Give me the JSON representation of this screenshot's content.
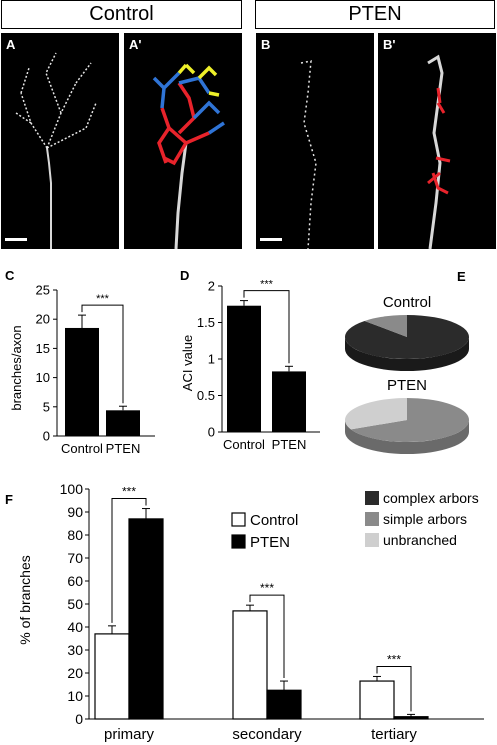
{
  "headers": {
    "left": "Control",
    "right": "PTEN"
  },
  "panels": {
    "A": "A",
    "A_prime": "A'",
    "B": "B",
    "B_prime": "B'",
    "C": "C",
    "D": "D",
    "E": "E",
    "F": "F"
  },
  "colors": {
    "primary_trace": "#e8232b",
    "secondary_trace": "#2f74d6",
    "tertiary_trace": "#eef02a",
    "axon": "#d8d8d8",
    "complex": "#2b2b2b",
    "simple": "#8a8a8a",
    "unbranched": "#cfcfcf"
  },
  "chart_data": [
    {
      "id": "C",
      "type": "bar",
      "categories": [
        "Control",
        "PTEN"
      ],
      "values": [
        18.5,
        4.4
      ],
      "errors": [
        2.2,
        0.7
      ],
      "ylabel": "branches/axon",
      "ylim": [
        0,
        25
      ],
      "yticks": [
        "0",
        "5",
        "10",
        "15",
        "20",
        "25"
      ],
      "significance": "***",
      "bar_color": "#000000"
    },
    {
      "id": "D",
      "type": "bar",
      "categories": [
        "Control",
        "PTEN"
      ],
      "values": [
        1.73,
        0.83
      ],
      "errors": [
        0.07,
        0.07
      ],
      "ylabel": "ACI value",
      "ylim": [
        0,
        2
      ],
      "yticks": [
        "0",
        "0.5",
        "1",
        "1.5",
        "2"
      ],
      "significance": "***",
      "bar_color": "#000000"
    },
    {
      "id": "E",
      "type": "pie",
      "pies": [
        {
          "title": "Control",
          "slices": [
            {
              "name": "complex arbors",
              "value": 88
            },
            {
              "name": "simple arbors",
              "value": 12
            },
            {
              "name": "unbranched",
              "value": 0
            }
          ]
        },
        {
          "title": "PTEN",
          "slices": [
            {
              "name": "complex arbors",
              "value": 0
            },
            {
              "name": "simple arbors",
              "value": 68
            },
            {
              "name": "unbranched",
              "value": 32
            }
          ]
        }
      ],
      "legend": [
        "complex arbors",
        "simple arbors",
        "unbranched"
      ]
    },
    {
      "id": "F",
      "type": "bar",
      "categories": [
        "primary",
        "secondary",
        "tertiary"
      ],
      "series": [
        {
          "name": "Control",
          "values": [
            37,
            47,
            16.5
          ],
          "errors": [
            3.5,
            2.5,
            2
          ],
          "color": "#ffffff"
        },
        {
          "name": "PTEN",
          "values": [
            87,
            12.5,
            1
          ],
          "errors": [
            4.5,
            4,
            1
          ],
          "color": "#000000"
        }
      ],
      "ylabel": "% of branches",
      "ylim": [
        0,
        100
      ],
      "yticks": [
        "0",
        "10",
        "20",
        "30",
        "40",
        "50",
        "60",
        "70",
        "80",
        "90",
        "100"
      ],
      "significance": [
        "***",
        "***",
        "***"
      ]
    }
  ]
}
